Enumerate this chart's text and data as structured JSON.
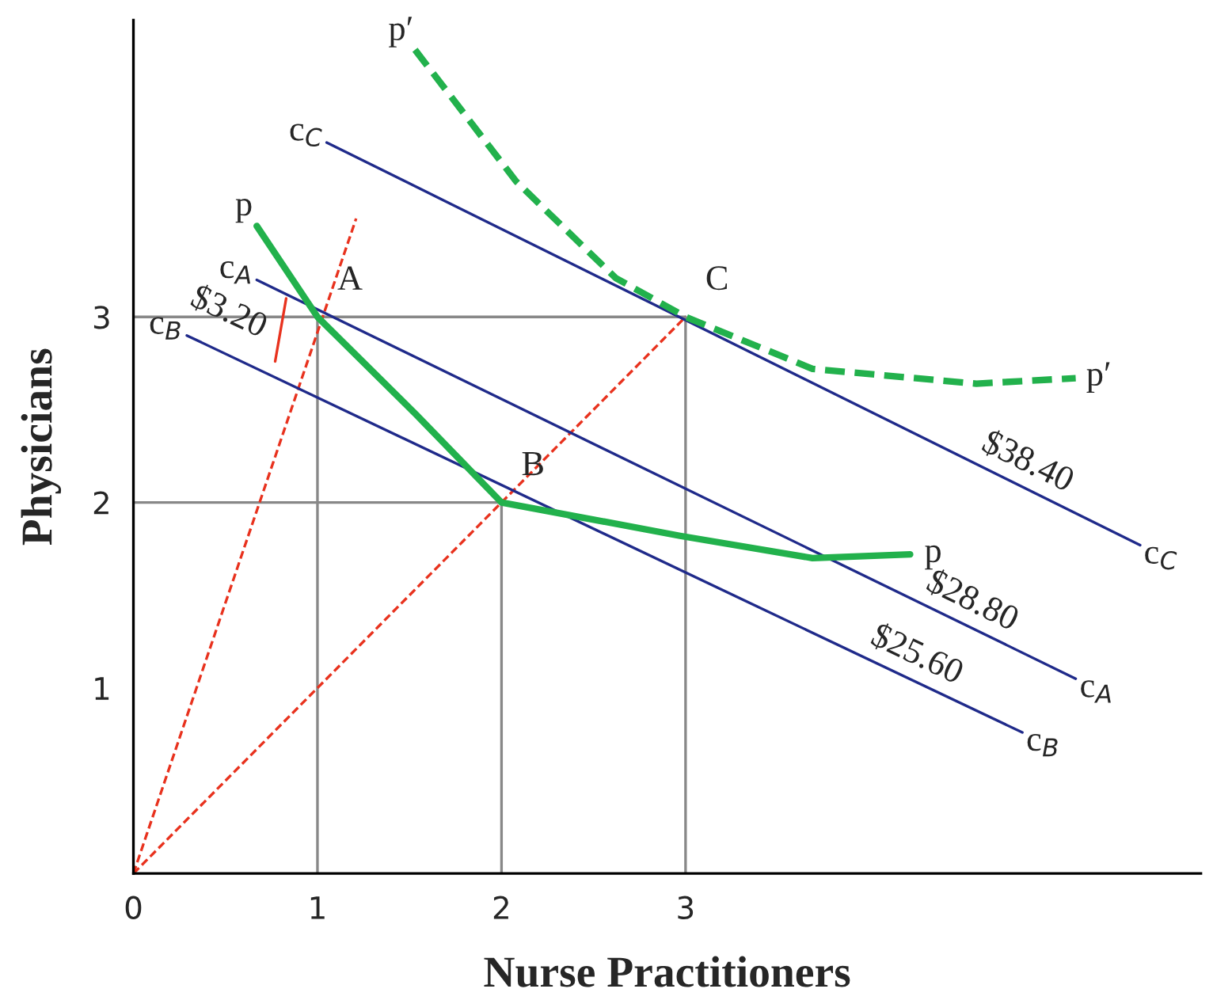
{
  "chart_data": {
    "type": "line",
    "xlabel": "Nurse Practitioners",
    "ylabel": "Physicians",
    "xlim": [
      0,
      5.8
    ],
    "ylim": [
      0,
      4.6
    ],
    "xticks": [
      0,
      1,
      2,
      3
    ],
    "yticks": [
      1,
      2,
      3
    ],
    "grid": false,
    "legend": false,
    "marker": "none",
    "series": [
      {
        "color": "#888888",
        "x": [
          0,
          3
        ],
        "values": [
          3,
          3
        ]
      },
      {
        "color": "#888888",
        "x": [
          1,
          1
        ],
        "values": [
          3,
          0
        ]
      },
      {
        "color": "#888888",
        "x": [
          0,
          2,
          2
        ],
        "values": [
          2,
          2,
          0
        ]
      },
      {
        "color": "#888888",
        "x": [
          3,
          3
        ],
        "values": [
          3,
          0
        ]
      },
      {
        "color": "#e8321e",
        "line_style": "dashed",
        "x": [
          0,
          1.21
        ],
        "values": [
          0,
          3.53
        ]
      },
      {
        "color": "#e8321e",
        "line_style": "dashed",
        "x": [
          0,
          3
        ],
        "values": [
          0,
          3
        ]
      },
      {
        "color": "#e8321e",
        "x": [
          0.83,
          0.77
        ],
        "values": [
          3.1,
          2.76
        ]
      },
      {
        "color": "#1f2a8a",
        "x": [
          1.05,
          5.47
        ],
        "values": [
          3.94,
          1.77
        ]
      },
      {
        "color": "#1f2a8a",
        "x": [
          0.67,
          5.12
        ],
        "values": [
          3.2,
          1.05
        ]
      },
      {
        "color": "#1f2a8a",
        "x": [
          0.29,
          4.83
        ],
        "values": [
          2.9,
          0.76
        ]
      },
      {
        "color": "#22b14c",
        "x": [
          0.67,
          1,
          1.54,
          2,
          2.97,
          3.69,
          4.22
        ],
        "values": [
          3.49,
          3,
          2.47,
          2,
          1.82,
          1.7,
          1.72
        ]
      },
      {
        "color": "#22b14c",
        "line_style": "dashed",
        "x": [
          1.53,
          2.08,
          2.62,
          3,
          3.69,
          4.58,
          5.12
        ],
        "values": [
          4.44,
          3.73,
          3.21,
          3,
          2.72,
          2.64,
          2.67
        ]
      }
    ],
    "annotations": [
      {
        "text": "p",
        "x": 0.67,
        "y": 3.49
      },
      {
        "text": "p′",
        "x": 1.53,
        "y": 4.44
      },
      {
        "text": "c$_{C}$",
        "x": 1.05,
        "y": 3.94
      },
      {
        "text": "c$_{A}$",
        "x": 0.67,
        "y": 3.2
      },
      {
        "text": "$3.20",
        "x": 0.8,
        "y": 2.93
      },
      {
        "text": "c$_{B}$",
        "x": 0.29,
        "y": 2.9
      },
      {
        "text": "A",
        "x": 1,
        "y": 3
      },
      {
        "text": "C",
        "x": 3,
        "y": 3
      },
      {
        "text": "B",
        "x": 2,
        "y": 2
      },
      {
        "text": "p′",
        "x": 5.12,
        "y": 2.67
      },
      {
        "text": "$38.40",
        "x": 4.8,
        "y": 2.1
      },
      {
        "text": "c$_{C}$",
        "x": 5.47,
        "y": 1.77
      },
      {
        "text": "p",
        "x": 4.22,
        "y": 1.72
      },
      {
        "text": "$28.80",
        "x": 4.5,
        "y": 1.35
      },
      {
        "text": "c$_{A}$",
        "x": 5.12,
        "y": 1.05
      },
      {
        "text": "$25.60",
        "x": 4.2,
        "y": 1.06
      },
      {
        "text": "c$_{B}$",
        "x": 4.83,
        "y": 0.76
      }
    ]
  }
}
